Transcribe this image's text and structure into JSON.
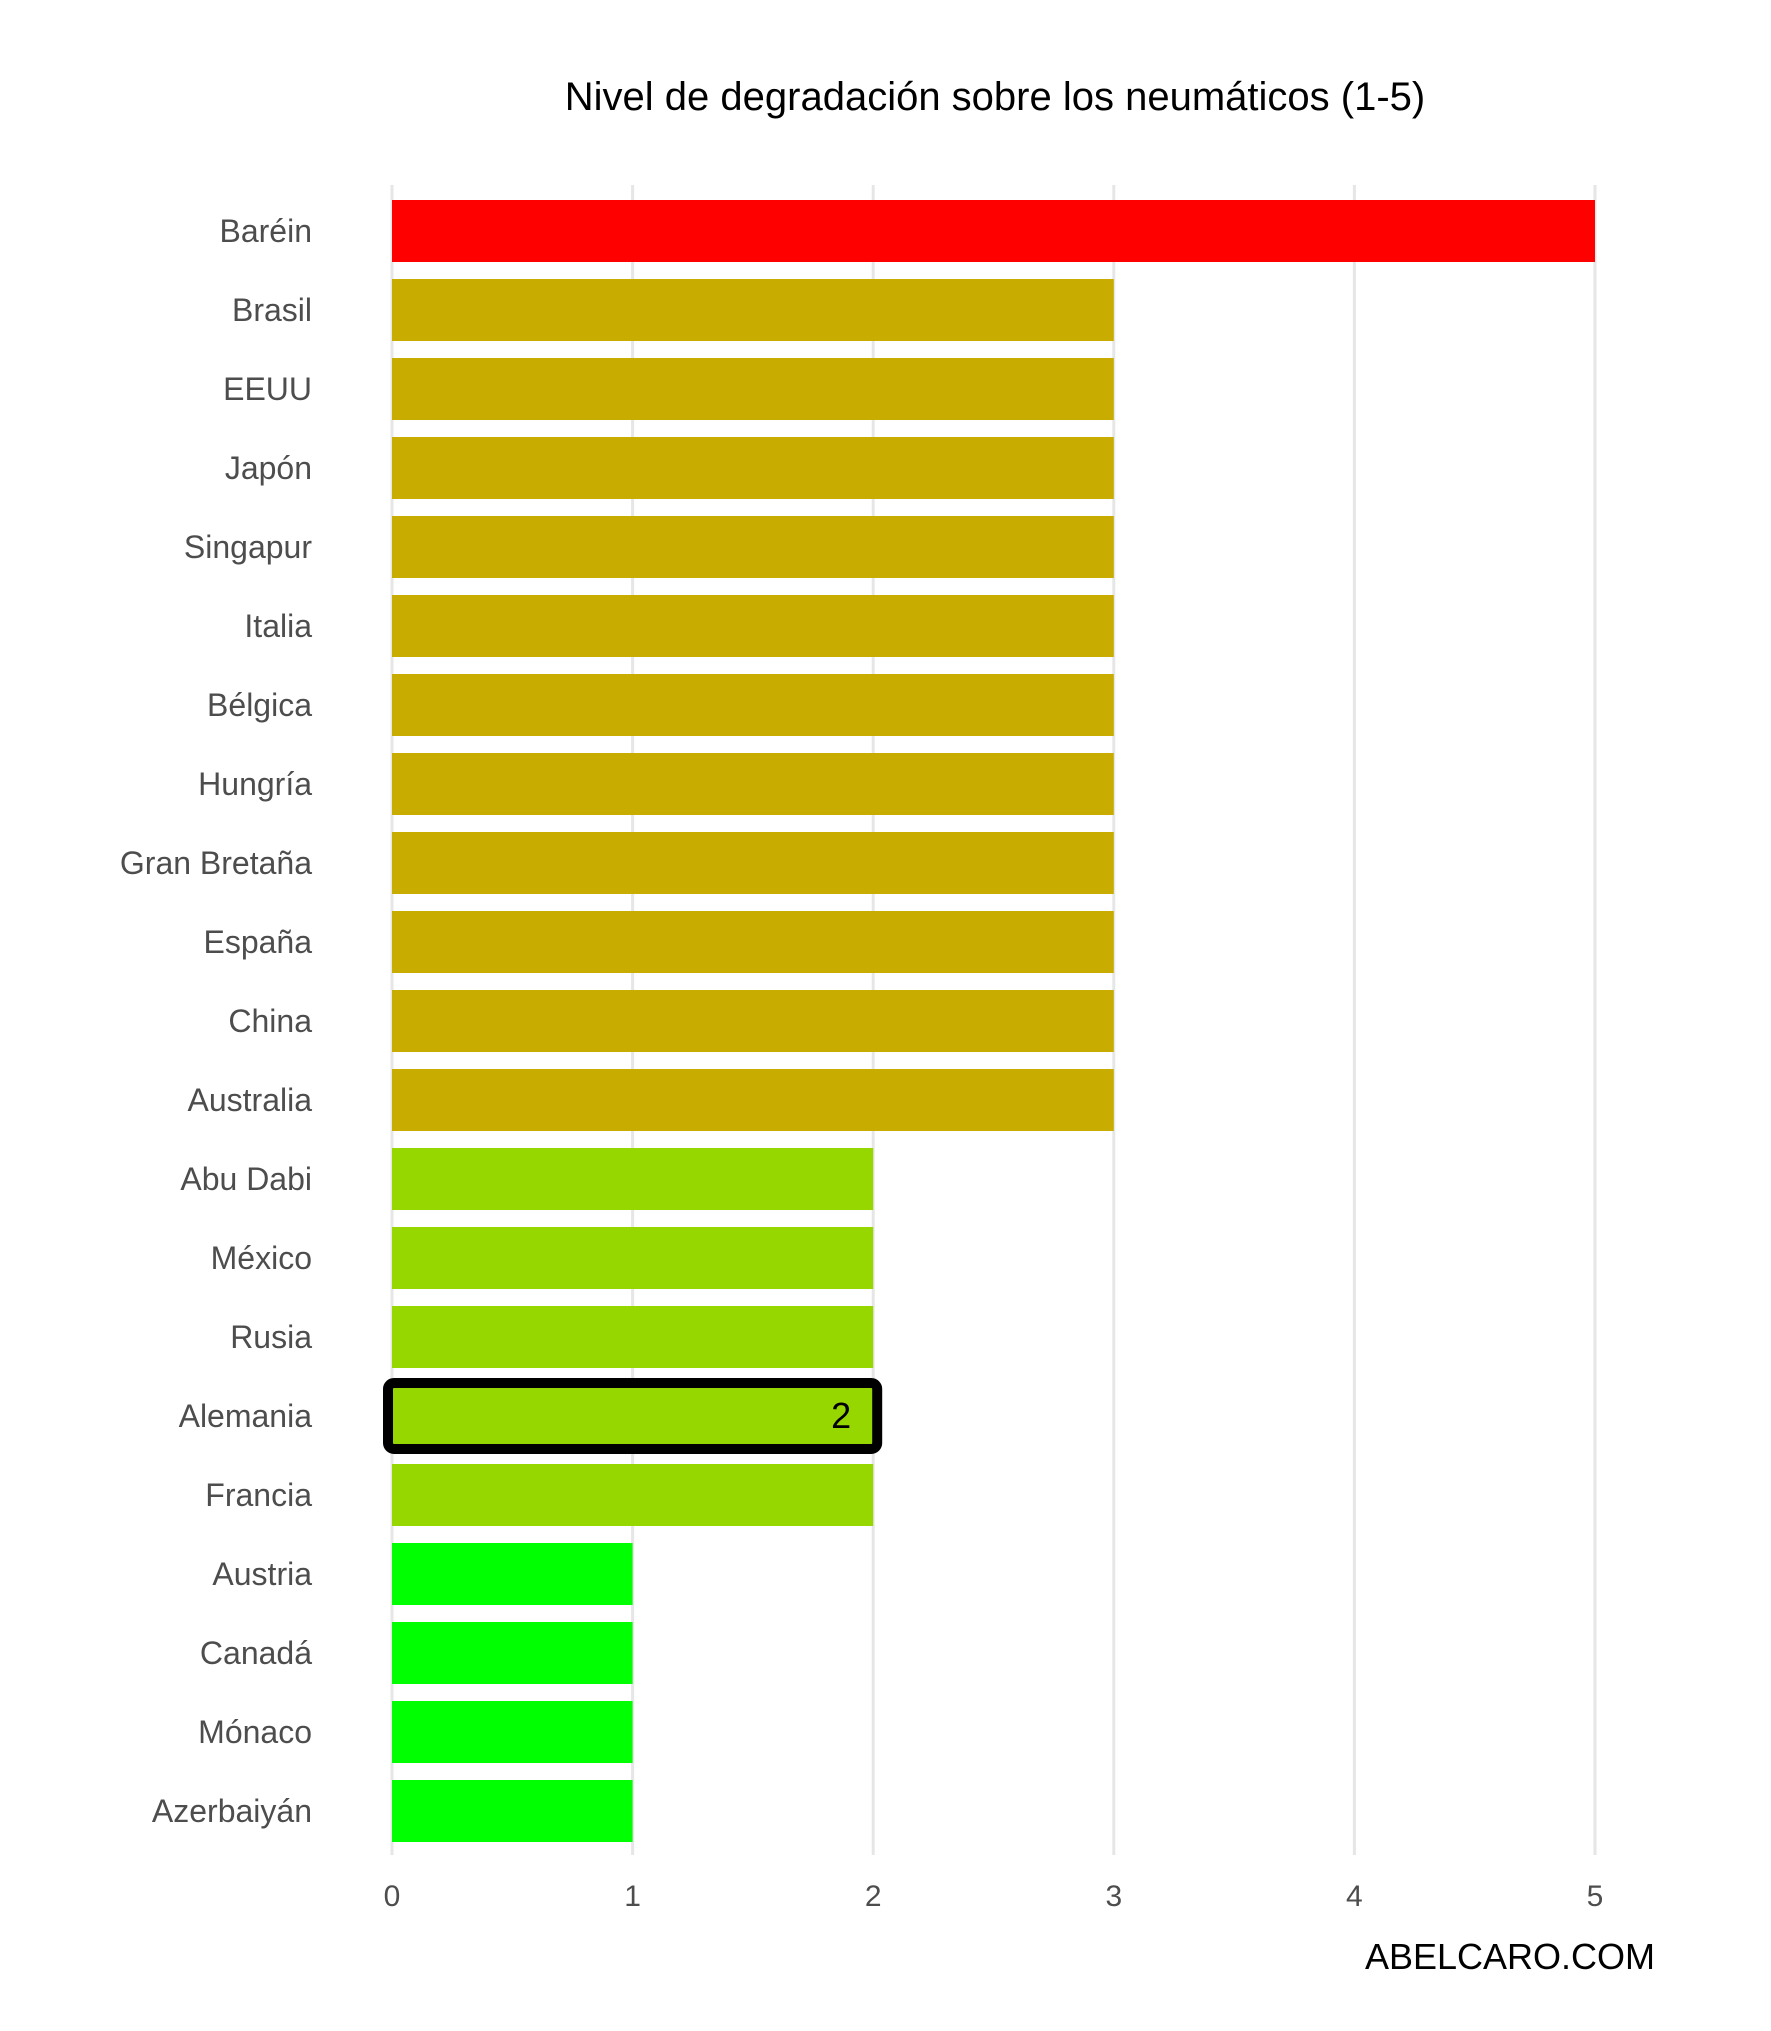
{
  "chart_data": {
    "type": "bar",
    "orientation": "horizontal",
    "title": "Nivel de degradación sobre los neumáticos (1-5)",
    "xlabel": "",
    "ylabel": "",
    "xlim": [
      0,
      5
    ],
    "xticks": [
      "0",
      "1",
      "2",
      "3",
      "4",
      "5"
    ],
    "grid": "vertical",
    "legend": "none",
    "categories": [
      "Baréin",
      "Brasil",
      "EEUU",
      "Japón",
      "Singapur",
      "Italia",
      "Bélgica",
      "Hungría",
      "Gran Bretaña",
      "España",
      "China",
      "Australia",
      "Abu Dabi",
      "México",
      "Rusia",
      "Alemania",
      "Francia",
      "Austria",
      "Canadá",
      "Mónaco",
      "Azerbaiyán"
    ],
    "values": [
      5,
      3,
      3,
      3,
      3,
      3,
      3,
      3,
      3,
      3,
      3,
      3,
      2,
      2,
      2,
      2,
      2,
      1,
      1,
      1,
      1
    ],
    "level_colors": {
      "1": "#00ff00",
      "2": "#97d700",
      "3": "#c8ad00",
      "5": "#ff0000"
    },
    "highlight": {
      "category": "Alemania",
      "label": "2",
      "outline_color": "#000000"
    },
    "credit": "ABELCARO.COM"
  }
}
